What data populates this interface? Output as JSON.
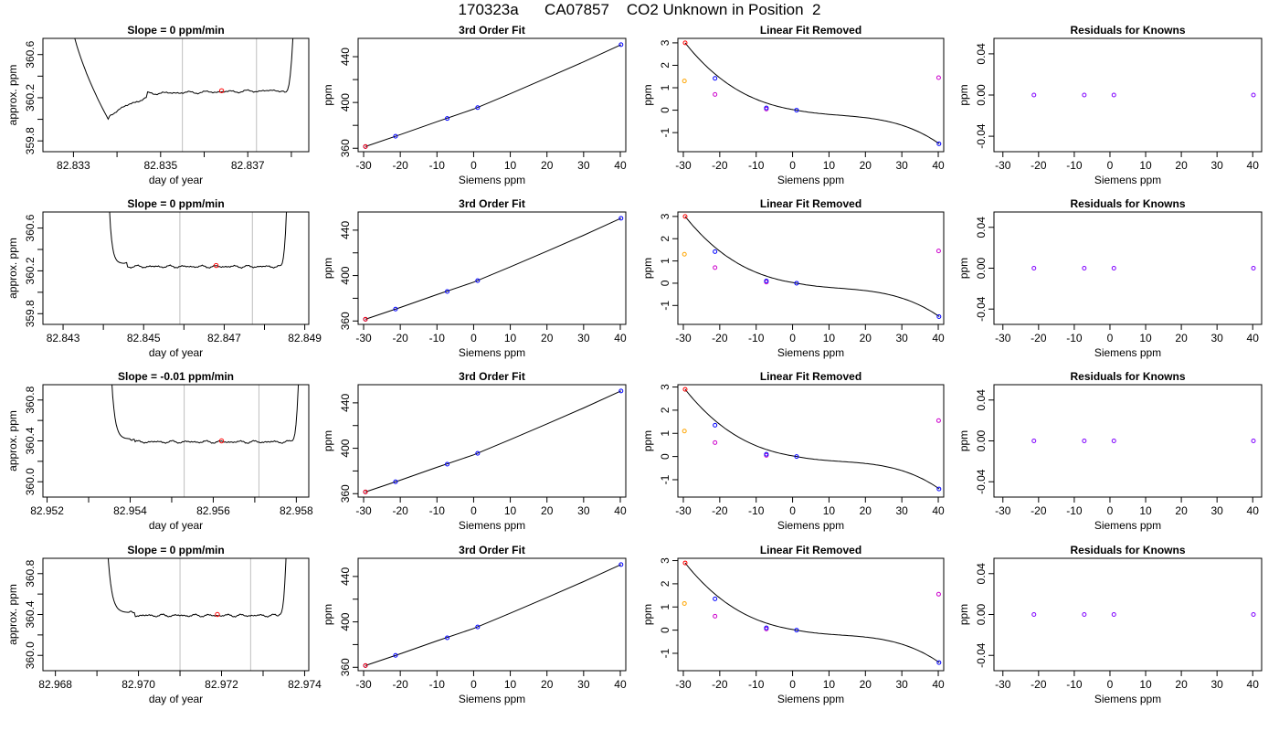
{
  "header": {
    "title": "170323a      CA07857    CO2 Unknown in Position  2"
  },
  "colors": {
    "line": "#000000",
    "fit_points": "#0000ff",
    "ref_low": "#ff0000",
    "ref_orange": "#ffa500",
    "ref_magenta": "#cc00cc",
    "residual": "#7f00ff",
    "vline": "#bebebe",
    "unknown": "#ff0000"
  },
  "chart_data": [
    {
      "panel": "time-series",
      "row": 1,
      "type": "line",
      "title": "Slope =  0  ppm/min",
      "xlabel": "day of year",
      "ylabel": "approx. ppm",
      "xlim": [
        82.8323,
        82.8384
      ],
      "ylim": [
        359.7,
        360.75
      ],
      "xticks": [
        82.833,
        82.835,
        82.837
      ],
      "xtick_labels": [
        "82.833",
        "82.835",
        "82.837"
      ],
      "xtick_minor": [
        82.834,
        82.836,
        82.838
      ],
      "yticks": [
        359.8,
        360.2,
        360.6
      ],
      "ytick_labels": [
        "359.8",
        "360.2",
        "360.6"
      ],
      "ytick_minor": [
        360.0,
        360.4
      ],
      "vlines": [
        82.8355,
        82.8372
      ],
      "unknown_point": {
        "x": 82.8364,
        "y": 360.265
      },
      "x_start": 82.8328,
      "x_end": 82.8381,
      "plateau_start": 82.8347,
      "plateau": 360.25,
      "dip": {
        "x": 82.8338,
        "y": 360.0
      },
      "noise": 0.012
    },
    {
      "panel": "cubic-fit",
      "row": 1,
      "type": "scatter",
      "title": "3rd Order Fit",
      "xlabel": "Siemens ppm",
      "ylabel": "ppm",
      "xlim": [
        -31.5,
        41.5
      ],
      "ylim": [
        357,
        456
      ],
      "xticks": [
        -30,
        -20,
        -10,
        0,
        10,
        20,
        30,
        40
      ],
      "yticks": [
        360,
        400,
        440
      ],
      "ytick_minor": [
        380,
        420
      ],
      "points": [
        {
          "x": -29.5,
          "y": 361.5
        },
        {
          "x": -21.3,
          "y": 370.5
        },
        {
          "x": -7.2,
          "y": 386
        },
        {
          "x": 1.1,
          "y": 395.5
        },
        {
          "x": 40.2,
          "y": 450.5
        }
      ],
      "curve": {
        "x": [
          -29.5,
          -20,
          -10,
          0,
          10,
          20,
          30,
          40.2
        ],
        "y": [
          361.5,
          371.9,
          383.2,
          394.2,
          407.6,
          421.5,
          435.5,
          450.5
        ]
      }
    },
    {
      "panel": "linear-removed",
      "row": 1,
      "type": "scatter",
      "title": "Linear Fit Removed",
      "xlabel": "Siemens ppm",
      "ylabel": "ppm",
      "xlim": [
        -31.5,
        41.5
      ],
      "ylim": [
        -1.85,
        3.2
      ],
      "xticks": [
        -30,
        -20,
        -10,
        0,
        10,
        20,
        30,
        40
      ],
      "yticks": [
        -1,
        0,
        1,
        2,
        3
      ],
      "curve_coef": [
        0,
        -0.0048,
        0.00024,
        6.8e-06
      ],
      "curve_range": [
        -29.5,
        40.3
      ],
      "blue_points": [
        {
          "x": -21.3,
          "y": 1.42
        },
        {
          "x": -7.2,
          "y": 0.1
        },
        {
          "x": 1.1,
          "y": 0.0
        },
        {
          "x": 40.2,
          "y": -1.5
        }
      ],
      "red_points": [
        {
          "x": -29.5,
          "y": 3.0
        }
      ],
      "orange_points": [
        {
          "x": -29.7,
          "y": 1.3
        }
      ],
      "magenta_points": [
        {
          "x": -21.3,
          "y": 0.7
        },
        {
          "x": -7.2,
          "y": 0.05
        },
        {
          "x": 40.1,
          "y": 1.45
        }
      ]
    },
    {
      "panel": "residuals",
      "row": 1,
      "type": "scatter",
      "title": "Residuals for Knowns",
      "xlabel": "Siemens ppm",
      "ylabel": "ppm",
      "xlim": [
        -32.5,
        42.5
      ],
      "ylim": [
        -0.055,
        0.055
      ],
      "xticks": [
        -30,
        -20,
        -10,
        0,
        10,
        20,
        30,
        40
      ],
      "yticks": [
        -0.04,
        0.0,
        0.04
      ],
      "ytick_labels": [
        "-0.04",
        "0.00",
        "0.04"
      ],
      "points": [
        {
          "x": -21.3,
          "y": 0
        },
        {
          "x": -7.2,
          "y": 0
        },
        {
          "x": 1.1,
          "y": 0
        },
        {
          "x": 40.2,
          "y": 0
        }
      ]
    },
    {
      "panel": "time-series",
      "row": 2,
      "type": "line",
      "title": "Slope =  0  ppm/min",
      "xlabel": "day of year",
      "ylabel": "approx. ppm",
      "xlim": [
        82.8425,
        82.8491
      ],
      "ylim": [
        359.7,
        360.75
      ],
      "xticks": [
        82.843,
        82.845,
        82.847,
        82.849
      ],
      "xtick_labels": [
        "82.843",
        "82.845",
        "82.847",
        "82.849"
      ],
      "xtick_minor": [
        82.844,
        82.846,
        82.848
      ],
      "yticks": [
        359.8,
        360.2,
        360.6
      ],
      "ytick_labels": [
        "359.8",
        "360.2",
        "360.6"
      ],
      "ytick_minor": [
        360.0,
        360.4
      ],
      "vlines": [
        82.8459,
        82.8477
      ],
      "unknown_point": {
        "x": 82.8468,
        "y": 360.25
      },
      "x_start": 82.8441,
      "x_end": 82.8486,
      "plateau_start": 82.8446,
      "plateau": 360.25,
      "dip": null,
      "noise": 0.012
    },
    {
      "panel": "cubic-fit",
      "row": 2,
      "type": "scatter",
      "title": "3rd Order Fit",
      "xlabel": "Siemens ppm",
      "ylabel": "ppm",
      "xlim": [
        -31.5,
        41.5
      ],
      "ylim": [
        357,
        456
      ],
      "xticks": [
        -30,
        -20,
        -10,
        0,
        10,
        20,
        30,
        40
      ],
      "yticks": [
        360,
        400,
        440
      ],
      "ytick_minor": [
        380,
        420
      ],
      "points": [
        {
          "x": -29.5,
          "y": 361.5
        },
        {
          "x": -21.3,
          "y": 370.5
        },
        {
          "x": -7.2,
          "y": 386
        },
        {
          "x": 1.1,
          "y": 395.5
        },
        {
          "x": 40.2,
          "y": 450.5
        }
      ],
      "curve": {
        "x": [
          -29.5,
          -20,
          -10,
          0,
          10,
          20,
          30,
          40.2
        ],
        "y": [
          361.5,
          371.9,
          383.2,
          394.2,
          407.6,
          421.5,
          435.5,
          450.5
        ]
      }
    },
    {
      "panel": "linear-removed",
      "row": 2,
      "type": "scatter",
      "title": "Linear Fit Removed",
      "xlabel": "Siemens ppm",
      "ylabel": "ppm",
      "xlim": [
        -31.5,
        41.5
      ],
      "ylim": [
        -1.85,
        3.2
      ],
      "xticks": [
        -30,
        -20,
        -10,
        0,
        10,
        20,
        30,
        40
      ],
      "yticks": [
        -1,
        0,
        1,
        2,
        3
      ],
      "curve_coef": [
        0,
        -0.0048,
        0.00024,
        6.8e-06
      ],
      "curve_range": [
        -29.5,
        40.3
      ],
      "blue_points": [
        {
          "x": -21.3,
          "y": 1.42
        },
        {
          "x": -7.2,
          "y": 0.1
        },
        {
          "x": 1.1,
          "y": 0.0
        },
        {
          "x": 40.2,
          "y": -1.5
        }
      ],
      "red_points": [
        {
          "x": -29.5,
          "y": 3.0
        }
      ],
      "orange_points": [
        {
          "x": -29.7,
          "y": 1.3
        }
      ],
      "magenta_points": [
        {
          "x": -21.3,
          "y": 0.7
        },
        {
          "x": -7.2,
          "y": 0.05
        },
        {
          "x": 40.1,
          "y": 1.45
        }
      ]
    },
    {
      "panel": "residuals",
      "row": 2,
      "type": "scatter",
      "title": "Residuals for Knowns",
      "xlabel": "Siemens ppm",
      "ylabel": "ppm",
      "xlim": [
        -32.5,
        42.5
      ],
      "ylim": [
        -0.055,
        0.055
      ],
      "xticks": [
        -30,
        -20,
        -10,
        0,
        10,
        20,
        30,
        40
      ],
      "yticks": [
        -0.04,
        0.0,
        0.04
      ],
      "ytick_labels": [
        "-0.04",
        "0.00",
        "0.04"
      ],
      "points": [
        {
          "x": -21.3,
          "y": 0
        },
        {
          "x": -7.2,
          "y": 0
        },
        {
          "x": 1.1,
          "y": 0
        },
        {
          "x": 40.2,
          "y": 0
        }
      ]
    },
    {
      "panel": "time-series",
      "row": 3,
      "type": "line",
      "title": "Slope =  -0.01  ppm/min",
      "xlabel": "day of year",
      "ylabel": "approx. ppm",
      "xlim": [
        82.9519,
        82.9583
      ],
      "ylim": [
        359.85,
        360.95
      ],
      "xticks": [
        82.952,
        82.954,
        82.956,
        82.958
      ],
      "xtick_labels": [
        "82.952",
        "82.954",
        "82.956",
        "82.958"
      ],
      "xtick_minor": [
        82.953,
        82.955,
        82.957
      ],
      "yticks": [
        360.0,
        360.4,
        360.8
      ],
      "ytick_labels": [
        "360.0",
        "360.4",
        "360.8"
      ],
      "ytick_minor": [
        360.2,
        360.6
      ],
      "vlines": [
        82.9553,
        82.9571
      ],
      "unknown_point": {
        "x": 82.9562,
        "y": 360.4
      },
      "x_start": 82.9535,
      "x_end": 82.9581,
      "plateau_start": 82.9541,
      "plateau": 360.4,
      "dip": null,
      "noise": 0.013
    },
    {
      "panel": "cubic-fit",
      "row": 3,
      "type": "scatter",
      "title": "3rd Order Fit",
      "xlabel": "Siemens ppm",
      "ylabel": "ppm",
      "xlim": [
        -31.5,
        41.5
      ],
      "ylim": [
        357,
        456
      ],
      "xticks": [
        -30,
        -20,
        -10,
        0,
        10,
        20,
        30,
        40
      ],
      "yticks": [
        360,
        400,
        440
      ],
      "ytick_minor": [
        380,
        420
      ],
      "points": [
        {
          "x": -29.5,
          "y": 361.5
        },
        {
          "x": -21.3,
          "y": 370.5
        },
        {
          "x": -7.2,
          "y": 386
        },
        {
          "x": 1.1,
          "y": 395.5
        },
        {
          "x": 40.2,
          "y": 450.5
        }
      ],
      "curve": {
        "x": [
          -29.5,
          -20,
          -10,
          0,
          10,
          20,
          30,
          40.2
        ],
        "y": [
          361.5,
          371.9,
          383.2,
          394.2,
          407.6,
          421.5,
          435.5,
          450.5
        ]
      }
    },
    {
      "panel": "linear-removed",
      "row": 3,
      "type": "scatter",
      "title": "Linear Fit Removed",
      "xlabel": "Siemens ppm",
      "ylabel": "ppm",
      "xlim": [
        -31.5,
        41.5
      ],
      "ylim": [
        -1.75,
        3.1
      ],
      "xticks": [
        -30,
        -20,
        -10,
        0,
        10,
        20,
        30,
        40
      ],
      "yticks": [
        -1,
        0,
        1,
        2,
        3
      ],
      "curve_coef": [
        0,
        -0.0045,
        0.00024,
        6.6e-06
      ],
      "curve_range": [
        -29.5,
        40.3
      ],
      "blue_points": [
        {
          "x": -21.3,
          "y": 1.35
        },
        {
          "x": -7.2,
          "y": 0.1
        },
        {
          "x": 1.1,
          "y": 0.0
        },
        {
          "x": 40.2,
          "y": -1.4
        }
      ],
      "red_points": [
        {
          "x": -29.5,
          "y": 2.9
        }
      ],
      "orange_points": [
        {
          "x": -29.7,
          "y": 1.1
        }
      ],
      "magenta_points": [
        {
          "x": -21.3,
          "y": 0.6
        },
        {
          "x": -7.2,
          "y": 0.05
        },
        {
          "x": 40.1,
          "y": 1.55
        }
      ]
    },
    {
      "panel": "residuals",
      "row": 3,
      "type": "scatter",
      "title": "Residuals for Knowns",
      "xlabel": "Siemens ppm",
      "ylabel": "ppm",
      "xlim": [
        -32.5,
        42.5
      ],
      "ylim": [
        -0.055,
        0.055
      ],
      "xticks": [
        -30,
        -20,
        -10,
        0,
        10,
        20,
        30,
        40
      ],
      "yticks": [
        -0.04,
        0.0,
        0.04
      ],
      "ytick_labels": [
        "-0.04",
        "0.00",
        "0.04"
      ],
      "points": [
        {
          "x": -21.3,
          "y": 0
        },
        {
          "x": -7.2,
          "y": 0
        },
        {
          "x": 1.1,
          "y": 0
        },
        {
          "x": 40.2,
          "y": 0
        }
      ]
    },
    {
      "panel": "time-series",
      "row": 4,
      "type": "line",
      "title": "Slope =  0  ppm/min",
      "xlabel": "day of year",
      "ylabel": "approx. ppm",
      "xlim": [
        82.9677,
        82.9741
      ],
      "ylim": [
        359.85,
        360.95
      ],
      "xticks": [
        82.968,
        82.97,
        82.972,
        82.974
      ],
      "xtick_labels": [
        "82.968",
        "82.970",
        "82.972",
        "82.974"
      ],
      "xtick_minor": [
        82.969,
        82.971,
        82.973
      ],
      "yticks": [
        360.0,
        360.4,
        360.8
      ],
      "ytick_labels": [
        "360.0",
        "360.4",
        "360.8"
      ],
      "ytick_minor": [
        360.2,
        360.6
      ],
      "vlines": [
        82.971,
        82.9727
      ],
      "unknown_point": {
        "x": 82.9719,
        "y": 360.4
      },
      "x_start": 82.9692,
      "x_end": 82.9736,
      "plateau_start": 82.9699,
      "plateau": 360.4,
      "dip": null,
      "noise": 0.013
    },
    {
      "panel": "cubic-fit",
      "row": 4,
      "type": "scatter",
      "title": "3rd Order Fit",
      "xlabel": "Siemens ppm",
      "ylabel": "ppm",
      "xlim": [
        -31.5,
        41.5
      ],
      "ylim": [
        357,
        456
      ],
      "xticks": [
        -30,
        -20,
        -10,
        0,
        10,
        20,
        30,
        40
      ],
      "yticks": [
        360,
        400,
        440
      ],
      "ytick_minor": [
        380,
        420
      ],
      "points": [
        {
          "x": -29.5,
          "y": 361.5
        },
        {
          "x": -21.3,
          "y": 370.5
        },
        {
          "x": -7.2,
          "y": 386
        },
        {
          "x": 1.1,
          "y": 395.5
        },
        {
          "x": 40.2,
          "y": 450.5
        }
      ],
      "curve": {
        "x": [
          -29.5,
          -20,
          -10,
          0,
          10,
          20,
          30,
          40.2
        ],
        "y": [
          361.5,
          371.9,
          383.2,
          394.2,
          407.6,
          421.5,
          435.5,
          450.5
        ]
      }
    },
    {
      "panel": "linear-removed",
      "row": 4,
      "type": "scatter",
      "title": "Linear Fit Removed",
      "xlabel": "Siemens ppm",
      "ylabel": "ppm",
      "xlim": [
        -31.5,
        41.5
      ],
      "ylim": [
        -1.75,
        3.1
      ],
      "xticks": [
        -30,
        -20,
        -10,
        0,
        10,
        20,
        30,
        40
      ],
      "yticks": [
        -1,
        0,
        1,
        2,
        3
      ],
      "curve_coef": [
        0,
        -0.0045,
        0.00024,
        6.6e-06
      ],
      "curve_range": [
        -29.5,
        40.3
      ],
      "blue_points": [
        {
          "x": -21.3,
          "y": 1.35
        },
        {
          "x": -7.2,
          "y": 0.1
        },
        {
          "x": 1.1,
          "y": 0.0
        },
        {
          "x": 40.2,
          "y": -1.4
        }
      ],
      "red_points": [
        {
          "x": -29.5,
          "y": 2.9
        }
      ],
      "orange_points": [
        {
          "x": -29.7,
          "y": 1.15
        }
      ],
      "magenta_points": [
        {
          "x": -21.3,
          "y": 0.6
        },
        {
          "x": -7.2,
          "y": 0.05
        },
        {
          "x": 40.1,
          "y": 1.55
        }
      ]
    },
    {
      "panel": "residuals",
      "row": 4,
      "type": "scatter",
      "title": "Residuals for Knowns",
      "xlabel": "Siemens ppm",
      "ylabel": "ppm",
      "xlim": [
        -32.5,
        42.5
      ],
      "ylim": [
        -0.055,
        0.055
      ],
      "xticks": [
        -30,
        -20,
        -10,
        0,
        10,
        20,
        30,
        40
      ],
      "yticks": [
        -0.04,
        0.0,
        0.04
      ],
      "ytick_labels": [
        "-0.04",
        "0.00",
        "0.04"
      ],
      "points": [
        {
          "x": -21.3,
          "y": 0
        },
        {
          "x": -7.2,
          "y": 0
        },
        {
          "x": 1.1,
          "y": 0
        },
        {
          "x": 40.2,
          "y": 0
        }
      ]
    }
  ]
}
